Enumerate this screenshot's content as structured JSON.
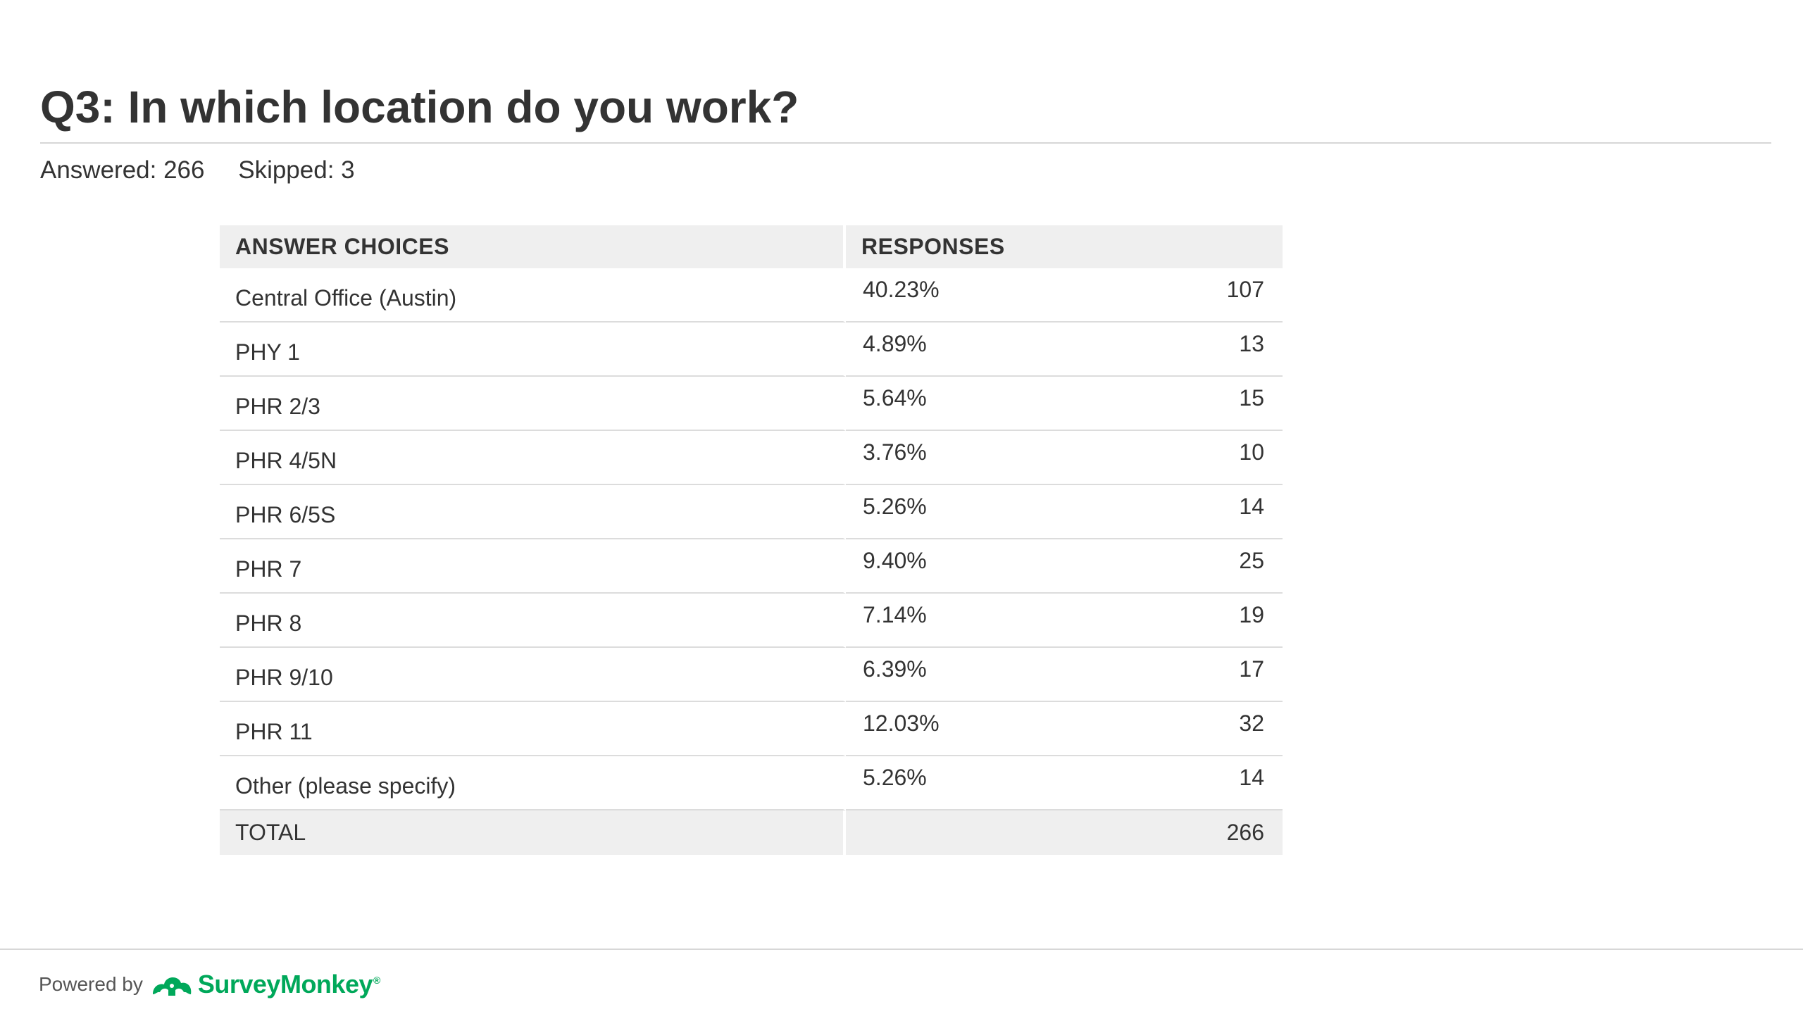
{
  "question": {
    "title": "Q3: In which location do you work?",
    "answered": "Answered: 266",
    "skipped": "Skipped: 3"
  },
  "table": {
    "headers": {
      "choices": "ANSWER CHOICES",
      "responses": "RESPONSES"
    },
    "rows": [
      {
        "choice": "Central Office (Austin)",
        "percent": "40.23%",
        "count": "107"
      },
      {
        "choice": "PHY 1",
        "percent": "4.89%",
        "count": "13"
      },
      {
        "choice": "PHR 2/3",
        "percent": "5.64%",
        "count": "15"
      },
      {
        "choice": "PHR 4/5N",
        "percent": "3.76%",
        "count": "10"
      },
      {
        "choice": "PHR 6/5S",
        "percent": "5.26%",
        "count": "14"
      },
      {
        "choice": "PHR 7",
        "percent": "9.40%",
        "count": "25"
      },
      {
        "choice": "PHR 8",
        "percent": "7.14%",
        "count": "19"
      },
      {
        "choice": "PHR 9/10",
        "percent": "6.39%",
        "count": "17"
      },
      {
        "choice": "PHR 11",
        "percent": "12.03%",
        "count": "32"
      },
      {
        "choice": "Other (please specify)",
        "percent": "5.26%",
        "count": "14"
      }
    ],
    "total": {
      "label": "TOTAL",
      "count": "266"
    }
  },
  "footer": {
    "powered_by": "Powered by",
    "brand": "SurveyMonkey",
    "trademark": "®",
    "logo_icon": "surveymonkey-logo-icon",
    "brand_color": "#00a85a"
  },
  "colors": {
    "text": "#333333",
    "header_background": "#efefef",
    "row_divider": "#dcdcdc"
  }
}
